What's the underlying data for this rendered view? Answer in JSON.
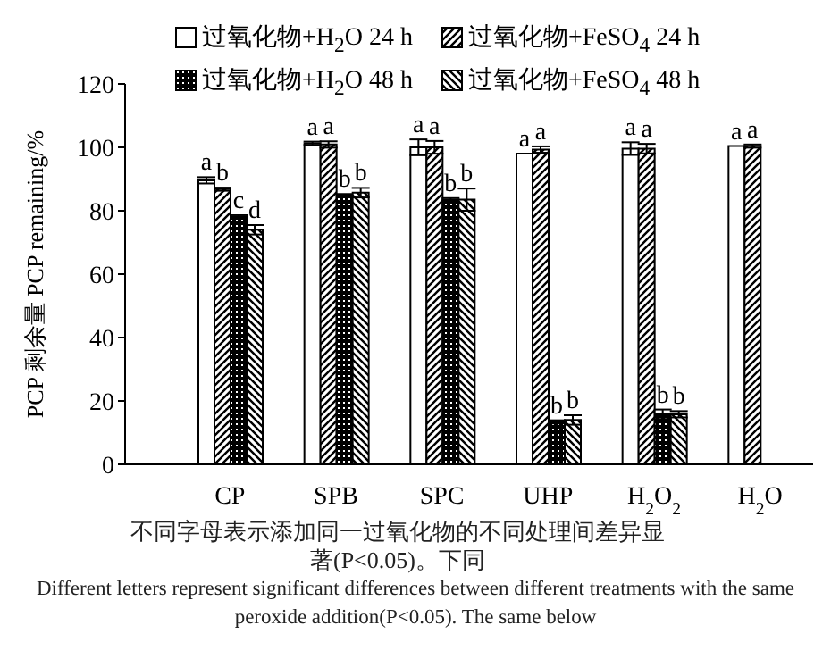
{
  "chart_data": {
    "type": "bar",
    "ylabel": "PCP 剩余量 PCP remaining/%",
    "categories": [
      "CP",
      "SPB",
      "SPC",
      "UHP",
      "H$_{2}$O$_{2}$",
      "H$_{2}$O"
    ],
    "series": [
      {
        "name": "过氧化物+H$_{2}$O 24 h",
        "color": "#ffffff",
        "values": [
          89.6,
          101.3,
          100,
          98,
          99.6,
          100.4
        ],
        "errors": [
          1,
          0.5,
          2.5,
          null,
          2,
          null
        ],
        "value_labels": [
          "a",
          "a",
          "a",
          "a",
          "a",
          "a"
        ]
      },
      {
        "name": "过氧化物+FeSO$_{4}$ 24 h",
        "color": "#000000",
        "values": [
          86.8,
          100.9,
          100,
          99.3,
          99.6,
          100.4
        ],
        "errors": [
          0.5,
          1,
          2,
          1,
          1.5,
          0.5
        ],
        "value_labels": [
          "b",
          "a",
          "a",
          "a",
          "a",
          "a"
        ]
      },
      {
        "name": "过氧化物+H$_{2}$O 48 h",
        "color": "#000000",
        "values": [
          78.1,
          85.3,
          83.5,
          13.4,
          15.8,
          null
        ],
        "errors": [
          0.5,
          null,
          0.5,
          0.5,
          1.5,
          null
        ],
        "value_labels": [
          "c",
          "b",
          "b",
          "b",
          "b",
          null
        ]
      },
      {
        "name": "过氧化物+FeSO$_{4}$ 48 h",
        "color": "#000000",
        "values": [
          74,
          85.7,
          83.5,
          14,
          15.8,
          null
        ],
        "errors": [
          1.5,
          1.5,
          3.5,
          1.5,
          1,
          null
        ],
        "value_labels": [
          "d",
          "b",
          "b",
          "b",
          "b",
          null
        ]
      }
    ],
    "ylim": [
      0,
      120
    ],
    "yticks": [
      0,
      20,
      40,
      60,
      80,
      100,
      120
    ],
    "grid": false,
    "legend": "top",
    "annotations": [
      "不同字母表示添加同一过氧化物的不同处理间差异显著(P<0.05)。下同",
      "Different letters represent significant differences between different treatments with the same peroxide addition(P<0.05). The same below"
    ]
  }
}
